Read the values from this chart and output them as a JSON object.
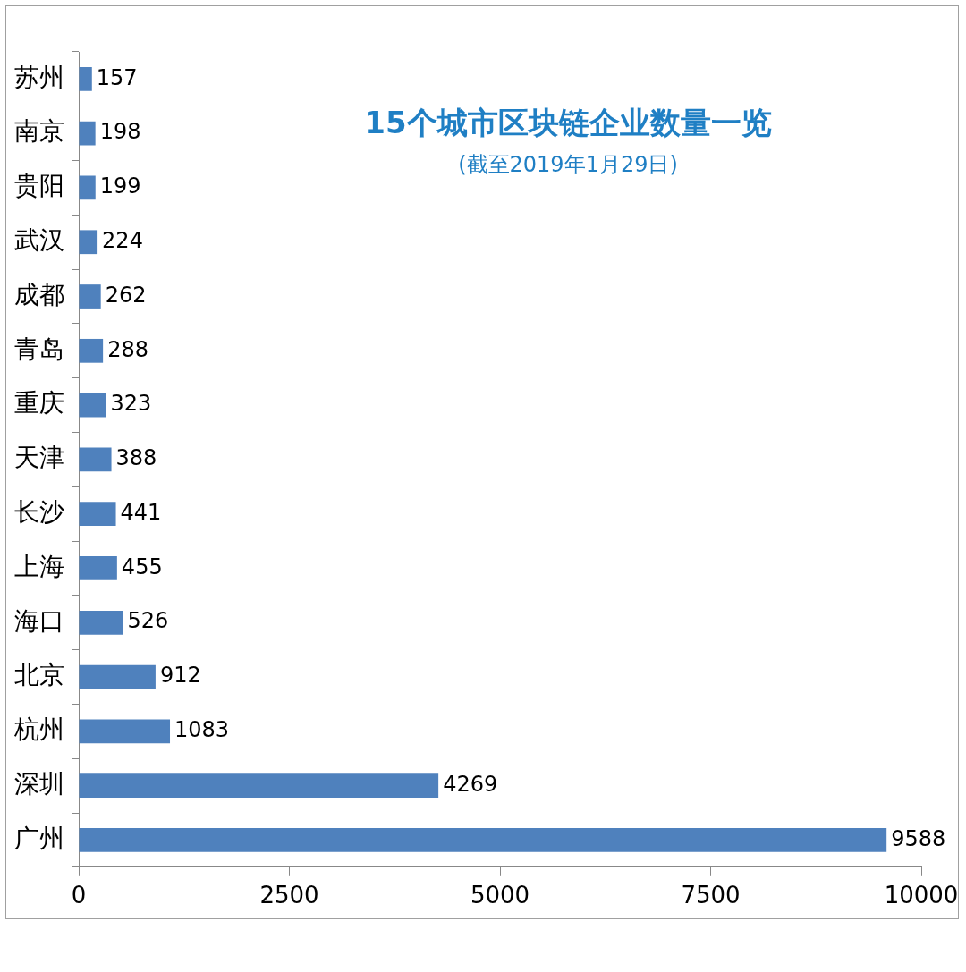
{
  "chart_data": {
    "type": "bar",
    "orientation": "horizontal",
    "title": "15个城市区块链企业数量一览",
    "subtitle": "(截至2019年1月29日)",
    "categories": [
      "苏州",
      "南京",
      "贵阳",
      "武汉",
      "成都",
      "青岛",
      "重庆",
      "天津",
      "长沙",
      "上海",
      "海口",
      "北京",
      "杭州",
      "深圳",
      "广州"
    ],
    "values": [
      157,
      198,
      199,
      224,
      262,
      288,
      323,
      388,
      441,
      455,
      526,
      912,
      1083,
      4269,
      9588
    ],
    "color": "#4f81bd",
    "xlim": [
      0,
      10000
    ],
    "xticks": [
      0,
      2500,
      5000,
      7500,
      10000
    ],
    "grid": false,
    "legend": false,
    "data_labels": true
  }
}
